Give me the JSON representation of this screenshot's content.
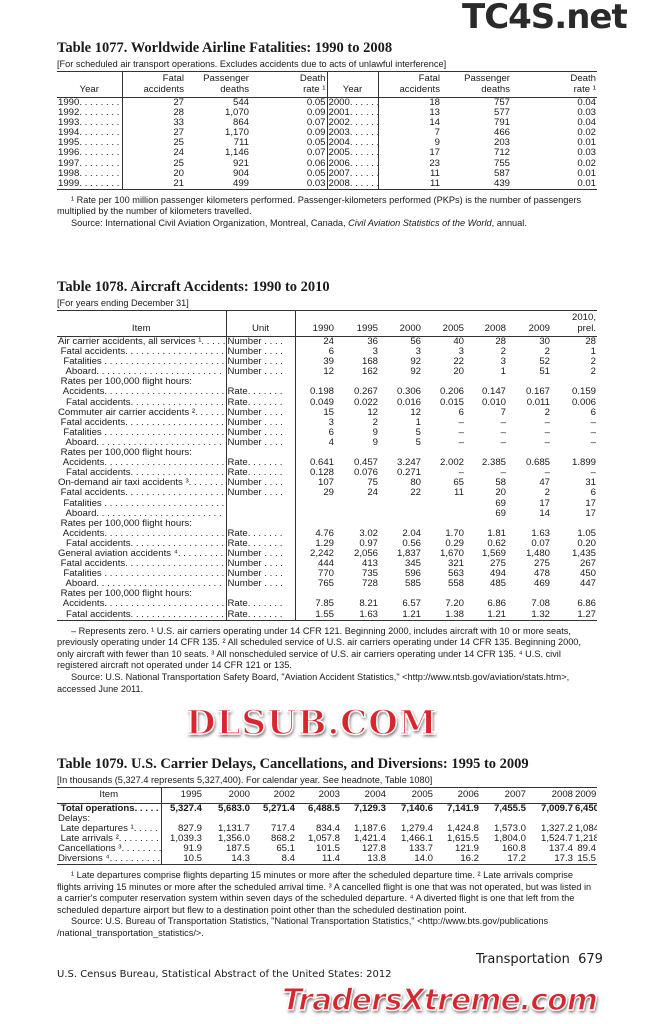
{
  "t1077": {
    "title": "Table 1077. Worldwide Airline Fatalities: 1990 to 2008",
    "subtitle": "[For scheduled air transport operations. Excludes accidents due to acts of unlawful interference]",
    "headers": [
      "Year",
      "Fatal\naccidents",
      "Passenger\ndeaths",
      "Death\nrate ¹",
      "Year",
      "Fatal\naccidents",
      "Passenger\ndeaths",
      "Death\nrate ¹"
    ],
    "rows": [
      [
        "1990. . . . . . . . .",
        "27",
        "544",
        "0.05",
        "2000. . . . . . . .",
        "18",
        "757",
        "0.04"
      ],
      [
        "1992. . . . . . . . .",
        "28",
        "1,070",
        "0.09",
        "2001. . . . . . . .",
        "13",
        "577",
        "0.03"
      ],
      [
        "1993. . . . . . . . .",
        "33",
        "864",
        "0.07",
        "2002. . . . . . . .",
        "14",
        "791",
        "0.04"
      ],
      [
        "1994. . . . . . . . .",
        "27",
        "1,170",
        "0.09",
        "2003. . . . . . . .",
        "7",
        "466",
        "0.02"
      ],
      [
        "1995. . . . . . . . .",
        "25",
        "711",
        "0.05",
        "2004. . . . . . . .",
        "9",
        "203",
        "0.01"
      ],
      [
        "1996. . . . . . . . .",
        "24",
        "1,146",
        "0.07",
        "2005. . . . . . . .",
        "17",
        "712",
        "0.03"
      ],
      [
        "1997. . . . . . . . .",
        "25",
        "921",
        "0.06",
        "2006. . . . . . . .",
        "23",
        "755",
        "0.02"
      ],
      [
        "1998. . . . . . . . .",
        "20",
        "904",
        "0.05",
        "2007. . . . . . . .",
        "11",
        "587",
        "0.01"
      ],
      [
        "1999. . . . . . . . .",
        "21",
        "499",
        "0.03",
        "2008. . . . . . . .",
        "11",
        "439",
        "0.01"
      ]
    ],
    "notes": [
      "¹ Rate per 100 million passenger kilometers performed. Passenger-kilometers performed (PKPs) is the number of passengers multiplied by the number of kilometers travelled.",
      "Source: International Civil Aviation Organization, Montreal, Canada, Civil Aviation Statistics of the World, annual."
    ]
  },
  "t1078": {
    "title": "Table 1078. Aircraft Accidents: 1990 to 2010",
    "subtitle": "[For years ending December 31]",
    "headers": [
      "Item",
      "Unit",
      "1990",
      "1995",
      "2000",
      "2005",
      "2008",
      "2009",
      "2010,\nprel."
    ],
    "rows": [
      [
        "Air carrier accidents, all services ¹. . . . . . .",
        "Number . . . .",
        "24",
        "36",
        "56",
        "40",
        "28",
        "30",
        "28"
      ],
      [
        " Fatal accidents. . . . . . . . . . . . . . . . . . . . .",
        "Number . . . .",
        "6",
        "3",
        "3",
        "3",
        "2",
        "2",
        "1"
      ],
      [
        "  Fatalities . . . . . . . . . . . . . . . . . . . . . . .",
        "Number . . . .",
        "39",
        "168",
        "92",
        "22",
        "3",
        "52",
        "2"
      ],
      [
        "   Aboard. . . . . . . . . . . . . . . . . . . . . . . .",
        "Number . . . .",
        "12",
        "162",
        "92",
        "20",
        "1",
        "51",
        "2"
      ],
      [
        " Rates per 100,000 flight hours:",
        "",
        "",
        "",
        "",
        "",
        "",
        "",
        ""
      ],
      [
        "  Accidents. . . . . . . . . . . . . . . . . . . . . . .",
        "Rate. . . . . . .",
        "0.198",
        "0.267",
        "0.306",
        "0.206",
        "0.147",
        "0.167",
        "0.159"
      ],
      [
        "   Fatal accidents. . . . . . . . . . . . . . . . . .",
        "Rate. . . . . . .",
        "0.049",
        "0.022",
        "0.016",
        "0.015",
        "0.010",
        "0.011",
        "0.006"
      ],
      [
        "Commuter air carrier accidents ². . . . . . . .",
        "Number . . . .",
        "15",
        "12",
        "12",
        "6",
        "7",
        "2",
        "6"
      ],
      [
        " Fatal accidents. . . . . . . . . . . . . . . . . . . . .",
        "Number . . . .",
        "3",
        "2",
        "1",
        "–",
        "–",
        "–",
        "–"
      ],
      [
        "  Fatalities . . . . . . . . . . . . . . . . . . . . . . .",
        "Number . . . .",
        "6",
        "9",
        "5",
        "–",
        "–",
        "–",
        "–"
      ],
      [
        "   Aboard. . . . . . . . . . . . . . . . . . . . . . . .",
        "Number . . . .",
        "4",
        "9",
        "5",
        "–",
        "–",
        "–",
        "–"
      ],
      [
        " Rates per 100,000 flight hours:",
        "",
        "",
        "",
        "",
        "",
        "",
        "",
        ""
      ],
      [
        "  Accidents. . . . . . . . . . . . . . . . . . . . . . .",
        "Rate. . . . . . .",
        "0.641",
        "0.457",
        "3.247",
        "2.002",
        "2.385",
        "0.685",
        "1.899"
      ],
      [
        "   Fatal accidents. . . . . . . . . . . . . . . . . .",
        "Rate. . . . . . .",
        "0.128",
        "0.076",
        "0.271",
        "–",
        "–",
        "–",
        "–"
      ],
      [
        "On-demand air taxi accidents ³. . . . . . . . . .",
        "Number . . . .",
        "107",
        "75",
        "80",
        "65",
        "58",
        "47",
        "31"
      ],
      [
        " Fatal accidents. . . . . . . . . . . . . . . . . . . . .",
        "Number . . . .",
        "29",
        "24",
        "22",
        "11",
        "20",
        "2",
        "6"
      ],
      [
        "  Fatalities . . . . . . . . . . . . . . . . . . . . . . .",
        "",
        "",
        "",
        "",
        "",
        "69",
        "17",
        "17"
      ],
      [
        "   Aboard. . . . . . . . . . . . . . . . . . . . . . . .",
        "",
        "",
        "",
        "",
        "",
        "69",
        "14",
        "17"
      ],
      [
        " Rates per 100,000 flight hours:",
        "",
        "",
        "",
        "",
        "",
        "",
        "",
        ""
      ],
      [
        "  Accidents. . . . . . . . . . . . . . . . . . . . . . .",
        "Rate. . . . . . .",
        "4.76",
        "3.02",
        "2.04",
        "1.70",
        "1.81",
        "1.63",
        "1.05"
      ],
      [
        "   Fatal accidents. . . . . . . . . . . . . . . . . .",
        "Rate. . . . . . .",
        "1.29",
        "0.97",
        "0.56",
        "0.29",
        "0.62",
        "0.07",
        "0.20"
      ],
      [
        "General aviation accidents ⁴. . . . . . . . . . . .",
        "Number . . . .",
        "2,242",
        "2,056",
        "1,837",
        "1,670",
        "1,569",
        "1,480",
        "1,435"
      ],
      [
        " Fatal accidents. . . . . . . . . . . . . . . . . . . . .",
        "Number . . . .",
        "444",
        "413",
        "345",
        "321",
        "275",
        "275",
        "267"
      ],
      [
        "  Fatalities . . . . . . . . . . . . . . . . . . . . . . .",
        "Number . . . .",
        "770",
        "735",
        "596",
        "563",
        "494",
        "478",
        "450"
      ],
      [
        "   Aboard. . . . . . . . . . . . . . . . . . . . . . . .",
        "Number . . . .",
        "765",
        "728",
        "585",
        "558",
        "485",
        "469",
        "447"
      ],
      [
        " Rates per 100,000 flight hours:",
        "",
        "",
        "",
        "",
        "",
        "",
        "",
        ""
      ],
      [
        "  Accidents. . . . . . . . . . . . . . . . . . . . . . .",
        "Rate. . . . . . .",
        "7.85",
        "8.21",
        "6.57",
        "7.20",
        "6.86",
        "7.08",
        "6.86"
      ],
      [
        "   Fatal accidents. . . . . . . . . . . . . . . . . .",
        "Rate. . . . . . .",
        "1.55",
        "1.63",
        "1.21",
        "1.38",
        "1.21",
        "1.32",
        "1.27"
      ]
    ],
    "notes": [
      "– Represents zero. ¹ U.S. air carriers operating under 14 CFR 121. Beginning 2000, includes aircraft with 10 or more seats, previously operating under 14 CFR 135. ² All scheduled service of U.S. air carriers operating under 14 CFR 135. Beginning 2000, only aircraft with fewer than 10 seats. ³ All nonscheduled service of U.S. air carriers operating under 14 CFR 135. ⁴ U.S. civil registered aircraft not operated under 14 CFR 121 or 135.",
      "Source: U.S. National Transportation Safety Board, \"Aviation Accident Statistics,\" <http://www.ntsb.gov/aviation/stats.htm>, accessed June 2011."
    ]
  },
  "t1079": {
    "title": "Table 1079. U.S. Carrier Delays, Cancellations, and Diversions: 1995 to 2009",
    "subtitle": "[In thousands (5,327.4 represents 5,327,400). For calendar year. See headnote, Table 1080]",
    "headers": [
      "Item",
      "1995",
      "2000",
      "2002",
      "2003",
      "2004",
      "2005",
      "2006",
      "2007",
      "2008",
      "2009"
    ],
    "rows": [
      [
        " Total operations. . . . . .",
        "5,327.4",
        "5,683.0",
        "5,271.4",
        "6,488.5",
        "7,129.3",
        "7,140.6",
        "7,141.9",
        "7,455.5",
        "7,009.7",
        "6,450.3"
      ],
      [
        "Delays:",
        "",
        "",
        "",
        "",
        "",
        "",
        "",
        "",
        "",
        ""
      ],
      [
        " Late departures ¹. . . . . .",
        "827.9",
        "1,131.7",
        "717.4",
        "834.4",
        "1,187.6",
        "1,279.4",
        "1,424.8",
        "1,573.0",
        "1,327.2",
        "1,084.3"
      ],
      [
        " Late arrivals ². . . . . . . . .",
        "1,039.3",
        "1,356.0",
        "868.2",
        "1,057.8",
        "1,421.4",
        "1,466.1",
        "1,615.5",
        "1,804.0",
        "1,524.7",
        "1,218.3"
      ],
      [
        "Cancellations ³. . . . . . . . .",
        "91.9",
        "187.5",
        "65.1",
        "101.5",
        "127.8",
        "133.7",
        "121.9",
        "160.8",
        "137.4",
        "89.4"
      ],
      [
        "Diversions ⁴. . . . . . . . . . .",
        "10.5",
        "14.3",
        "8.4",
        "11.4",
        "13.8",
        "14.0",
        "16.2",
        "17.2",
        "17.3",
        "15.5"
      ]
    ],
    "notes": [
      "¹ Late departures comprise flights departing 15 minutes or more after the scheduled departure time. ² Late arrivals comprise flights arriving 15 minutes or more after the scheduled arrival time. ³ A cancelled flight is one that was not operated, but was listed in a carrier's computer reservation system within seven days of the scheduled departure. ⁴ A diverted flight is one that left from the scheduled departure airport but flew to a destination point other than the scheduled destination point.",
      "Source: U.S. Bureau of Transportation Statistics, \"National Transportation Statistics,\" <http://www.bts.gov/publications /national_transportation_statistics/>."
    ]
  },
  "footer": {
    "section": "Transportation",
    "page": "679",
    "publisher": "U.S. Census Bureau, Statistical Abstract of the United States: 2012"
  },
  "watermarks": {
    "top": "TC4S.net",
    "middle": "DLSUB.COM",
    "bottom": "TradersXtreme.com",
    "color": "#d7262e"
  }
}
